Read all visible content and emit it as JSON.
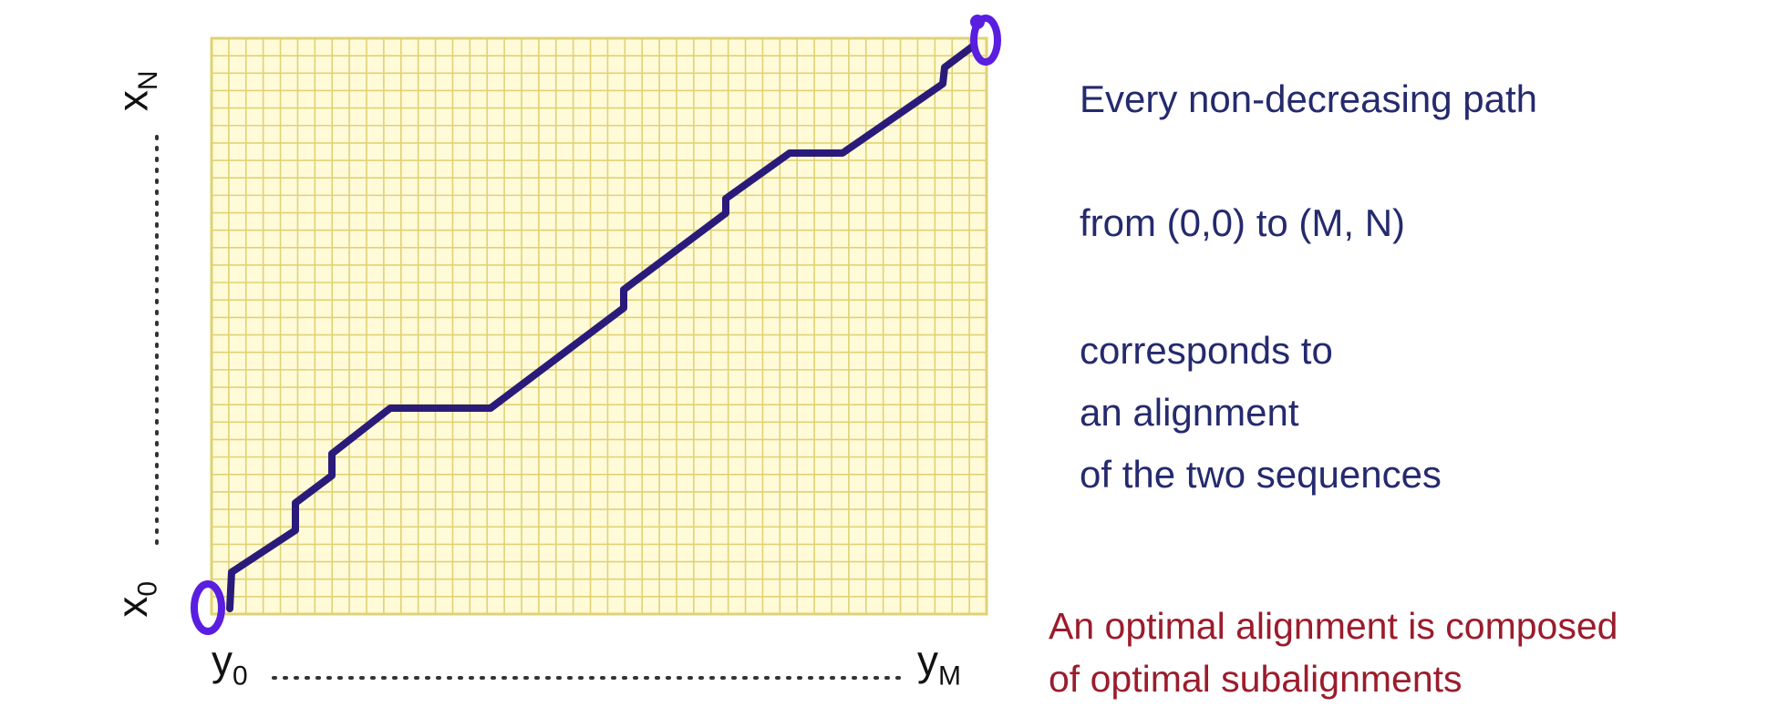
{
  "axes": {
    "x_start": {
      "base": "x",
      "sub": "0"
    },
    "x_end": {
      "base": "x",
      "sub": "N"
    },
    "y_start": {
      "base": "y",
      "sub": "0"
    },
    "y_end": {
      "base": "y",
      "sub": "M"
    }
  },
  "text": {
    "line1": "Every non-decreasing path",
    "line2": "from (0,0) to (M, N)",
    "line3": "corresponds to",
    "line4": "an alignment",
    "line5": "of the two sequences"
  },
  "note": {
    "line1": "An optimal alignment is composed",
    "line2": "of optimal subalignments"
  },
  "colors": {
    "grid": "#e0d274",
    "grid_background": "#fffbd8",
    "path": "#2a1b7a",
    "circles": "#5a1ee0",
    "text": "#252a6e",
    "note": "#9b1c2c"
  },
  "grid": {
    "columns": 45,
    "rows": 33
  }
}
